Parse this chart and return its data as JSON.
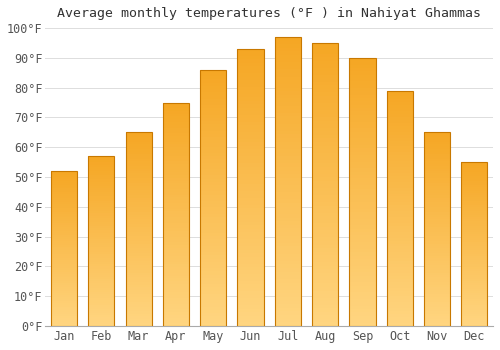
{
  "title": "Average monthly temperatures (°F ) in Nahiyat Ghammas",
  "months": [
    "Jan",
    "Feb",
    "Mar",
    "Apr",
    "May",
    "Jun",
    "Jul",
    "Aug",
    "Sep",
    "Oct",
    "Nov",
    "Dec"
  ],
  "values": [
    52,
    57,
    65,
    75,
    86,
    93,
    97,
    95,
    90,
    79,
    65,
    55
  ],
  "ylim": [
    0,
    100
  ],
  "yticks": [
    0,
    10,
    20,
    30,
    40,
    50,
    60,
    70,
    80,
    90,
    100
  ],
  "ytick_labels": [
    "0°F",
    "10°F",
    "20°F",
    "30°F",
    "40°F",
    "50°F",
    "60°F",
    "70°F",
    "80°F",
    "90°F",
    "100°F"
  ],
  "background_color": "#FFFFFF",
  "grid_color": "#DDDDDD",
  "title_fontsize": 9.5,
  "tick_fontsize": 8.5,
  "bar_color_top": "#F5A623",
  "bar_color_bottom": "#FFD580",
  "bar_edge_color": "#C87800",
  "bar_width": 0.7
}
